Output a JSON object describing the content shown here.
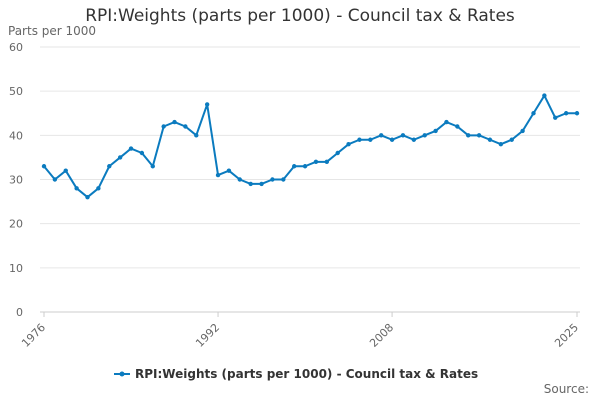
{
  "chart_data": {
    "type": "line",
    "title": "RPI:Weights (parts per 1000) - Council tax & Rates",
    "ylabel": "Parts per 1000",
    "xlabel": "",
    "x_start": 1976,
    "x_end": 2025,
    "x_ticks": [
      "1976",
      "1992",
      "2008",
      "2025"
    ],
    "y_ticks": [
      "0",
      "10",
      "20",
      "30",
      "40",
      "50",
      "60"
    ],
    "ylim": [
      0,
      60
    ],
    "grid": true,
    "legend_position": "bottom",
    "series": [
      {
        "name": "RPI:Weights (parts per 1000) - Council tax & Rates",
        "color": "#0b7bbf",
        "x": [
          1976,
          1977,
          1978,
          1979,
          1980,
          1981,
          1982,
          1983,
          1984,
          1985,
          1986,
          1987,
          1988,
          1989,
          1990,
          1991,
          1992,
          1993,
          1994,
          1995,
          1996,
          1997,
          1998,
          1999,
          2000,
          2001,
          2002,
          2003,
          2004,
          2005,
          2006,
          2007,
          2008,
          2009,
          2010,
          2011,
          2012,
          2013,
          2014,
          2015,
          2016,
          2017,
          2018,
          2019,
          2020,
          2021,
          2022,
          2023,
          2024,
          2025
        ],
        "values": [
          33,
          30,
          32,
          28,
          26,
          28,
          33,
          35,
          37,
          36,
          33,
          42,
          43,
          42,
          40,
          47,
          31,
          32,
          30,
          29,
          29,
          30,
          30,
          33,
          33,
          34,
          34,
          36,
          38,
          39,
          39,
          40,
          39,
          40,
          39,
          40,
          41,
          43,
          42,
          40,
          40,
          39,
          38,
          39,
          41,
          45,
          49,
          44,
          45,
          45
        ]
      }
    ],
    "source_label": "Source:"
  }
}
